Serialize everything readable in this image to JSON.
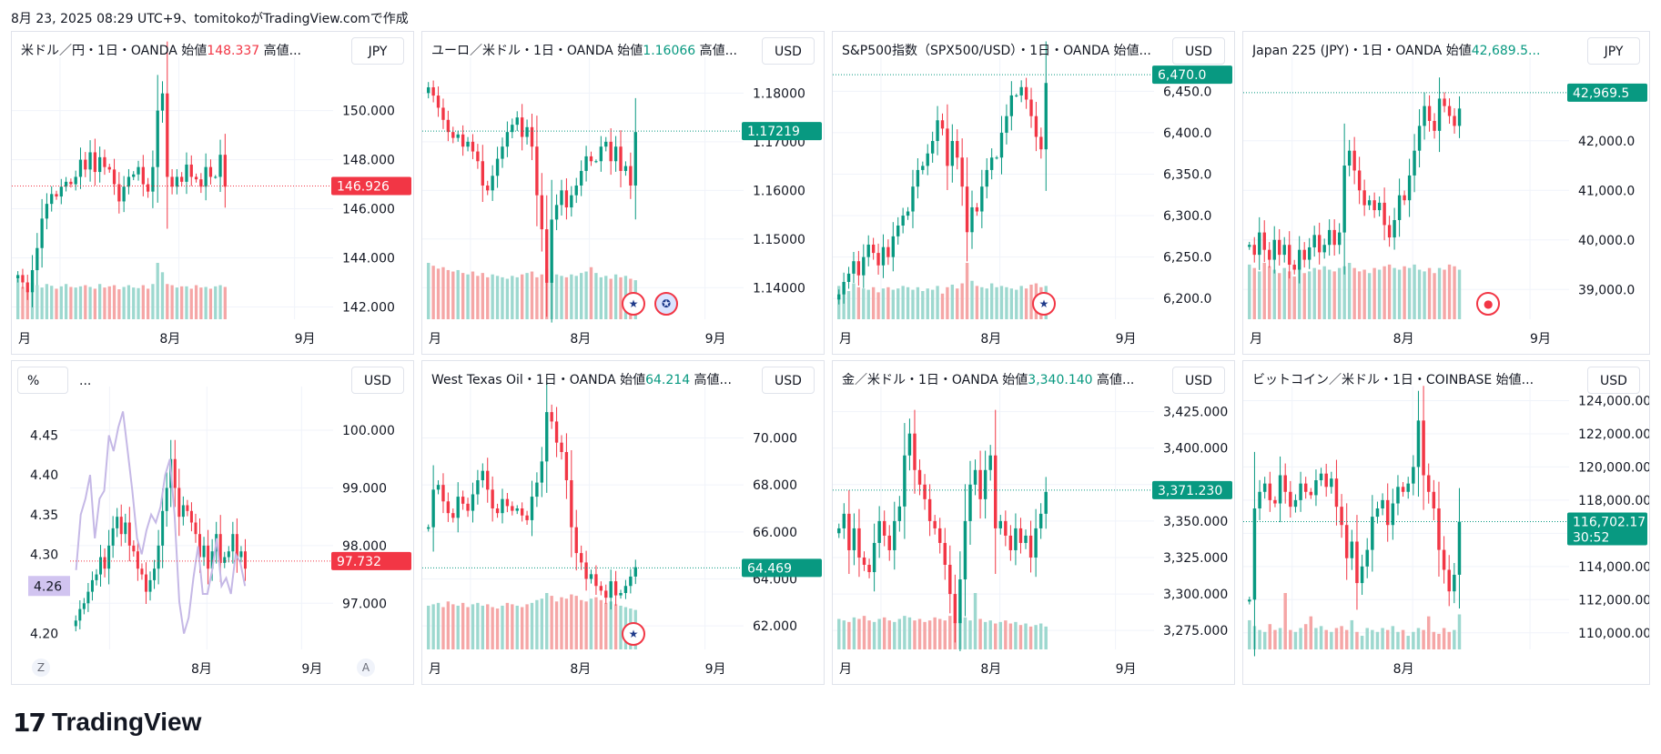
{
  "header": "8月 23, 2025 08:29 UTC+9、tomitokoがTradingView.comで作成",
  "footer": {
    "logo_mark": "17",
    "logo_text": "TradingView"
  },
  "colors": {
    "up": "#089981",
    "down": "#f23645",
    "up_vol": "#9dd8cf",
    "down_vol": "#f5a6a6",
    "grid": "#f0f3fa"
  },
  "chart_data": [
    {
      "type": "candlestick",
      "title_prefix": "米ドル／円・1日・OANDA  始値",
      "title_value": "148.337",
      "title_suffix": "  高値...",
      "value_color": "down",
      "currency": "JPY",
      "ylim": [
        141.5,
        151.8
      ],
      "y_ticks": [
        150.0,
        148.0,
        146.0,
        144.0,
        142.0
      ],
      "y_tick_labels": [
        "150.000",
        "148.000",
        "146.000",
        "144.000",
        "142.000"
      ],
      "last_price": 146.926,
      "last_label": "146.926",
      "last_color": "down",
      "time_labels": [
        "月",
        "8月",
        "9月"
      ],
      "closes": [
        143.3,
        143.0,
        142.6,
        143.5,
        144.4,
        145.6,
        146.2,
        146.6,
        146.5,
        146.9,
        147.1,
        147.0,
        147.3,
        148.0,
        147.6,
        148.3,
        147.5,
        148.1,
        147.7,
        147.6,
        147.0,
        146.3,
        146.9,
        147.3,
        147.4,
        147.7,
        147.0,
        146.7,
        147.7,
        150.0,
        150.7,
        147.3,
        146.9,
        147.3,
        147.1,
        147.8,
        147.3,
        147.2,
        146.9,
        147.7,
        147.3,
        147.3,
        148.2,
        146.9
      ],
      "volumes": [
        68,
        55,
        50,
        62,
        58,
        54,
        60,
        57,
        52,
        56,
        60,
        55,
        54,
        56,
        58,
        55,
        52,
        60,
        54,
        56,
        58,
        51,
        55,
        58,
        54,
        53,
        58,
        52,
        60,
        96,
        80,
        60,
        58,
        54,
        56,
        56,
        52,
        58,
        54,
        55,
        52,
        56,
        58,
        55
      ],
      "x_start": 0,
      "x_span": 60
    },
    {
      "type": "candlestick",
      "title_prefix": "ユーロ／米ドル・1日・OANDA  始値",
      "title_value": "1.16066",
      "title_suffix": "  高値...",
      "value_color": "up",
      "currency": "USD",
      "ylim": [
        1.1335,
        1.1855
      ],
      "y_ticks": [
        1.18,
        1.17,
        1.16,
        1.15,
        1.14
      ],
      "y_tick_labels": [
        "1.18000",
        "1.17000",
        "1.16000",
        "1.15000",
        "1.14000"
      ],
      "last_price": 1.17219,
      "last_label": "1.17219",
      "last_color": "up",
      "time_labels": [
        "月",
        "8月",
        "9月"
      ],
      "closes": [
        1.1812,
        1.1795,
        1.177,
        1.1745,
        1.172,
        1.1708,
        1.1715,
        1.169,
        1.17,
        1.168,
        1.166,
        1.161,
        1.16,
        1.163,
        1.1665,
        1.169,
        1.172,
        1.1735,
        1.175,
        1.171,
        1.173,
        1.169,
        1.159,
        1.152,
        1.141,
        1.154,
        1.157,
        1.16,
        1.1565,
        1.159,
        1.161,
        1.164,
        1.167,
        1.166,
        1.166,
        1.169,
        1.17,
        1.166,
        1.169,
        1.164,
        1.165,
        1.161,
        1.172
      ],
      "volumes": [
        78,
        74,
        70,
        72,
        68,
        66,
        68,
        64,
        62,
        66,
        60,
        64,
        58,
        62,
        60,
        58,
        56,
        60,
        58,
        62,
        64,
        66,
        58,
        62,
        70,
        66,
        62,
        60,
        58,
        62,
        60,
        64,
        66,
        72,
        64,
        58,
        60,
        56,
        62,
        58,
        60,
        56,
        54
      ],
      "flags": [
        "US",
        "EU"
      ],
      "x_start": 0,
      "x_span": 60
    },
    {
      "type": "candlestick",
      "title_prefix": "S&P500指数（SPX500/USD）・1日・OANDA  始値...",
      "title_value": "",
      "title_suffix": "",
      "value_color": "up",
      "currency": "USD",
      "ylim": [
        6175,
        6480
      ],
      "y_ticks": [
        6450,
        6400,
        6350,
        6300,
        6250,
        6200
      ],
      "y_tick_labels": [
        "6,450.0",
        "6,400.0",
        "6,350.0",
        "6,300.0",
        "6,250.0",
        "6,200.0"
      ],
      "last_price": 6470.0,
      "last_label": "6,470.0",
      "last_color": "up",
      "time_labels": [
        "月",
        "8月",
        "9月"
      ],
      "closes": [
        6205,
        6220,
        6230,
        6245,
        6228,
        6250,
        6265,
        6255,
        6240,
        6262,
        6250,
        6275,
        6288,
        6300,
        6305,
        6335,
        6355,
        6360,
        6375,
        6390,
        6415,
        6405,
        6360,
        6390,
        6370,
        6335,
        6280,
        6310,
        6305,
        6335,
        6355,
        6370,
        6370,
        6400,
        6420,
        6445,
        6445,
        6455,
        6440,
        6420,
        6395,
        6380,
        6460
      ],
      "volumes": [
        52,
        48,
        44,
        56,
        50,
        48,
        46,
        50,
        42,
        48,
        50,
        46,
        48,
        52,
        50,
        46,
        50,
        44,
        48,
        46,
        52,
        40,
        50,
        54,
        48,
        56,
        88,
        60,
        52,
        50,
        48,
        56,
        50,
        52,
        50,
        48,
        46,
        52,
        48,
        54,
        56,
        50,
        52
      ],
      "flags": [
        "US"
      ],
      "x_start": 0,
      "x_span": 60
    },
    {
      "type": "candlestick",
      "title_prefix": "Japan 225 (JPY)・1日・OANDA  始値",
      "title_value": "42,689.5...",
      "title_suffix": "",
      "value_color": "up",
      "currency": "JPY",
      "ylim": [
        38400,
        43500
      ],
      "y_ticks": [
        42000,
        41000,
        40000,
        39000
      ],
      "y_tick_labels": [
        "42,000.0",
        "41,000.0",
        "40,000.0",
        "39,000.0"
      ],
      "last_price": 42969.5,
      "last_label": "42,969.5",
      "last_color": "up",
      "time_labels": [
        "月",
        "8月",
        "9月"
      ],
      "closes": [
        39900,
        39700,
        40150,
        39800,
        39600,
        40000,
        39700,
        39900,
        39500,
        39400,
        39800,
        39600,
        39850,
        40100,
        39750,
        39900,
        40200,
        39900,
        40150,
        41500,
        41800,
        41400,
        41000,
        40700,
        40800,
        40600,
        40750,
        40300,
        40050,
        40400,
        40900,
        40800,
        41300,
        41800,
        42300,
        42700,
        42400,
        42200,
        42850,
        42700,
        42500,
        42300,
        42650
      ],
      "volumes": [
        64,
        60,
        56,
        66,
        62,
        58,
        54,
        60,
        56,
        50,
        58,
        54,
        56,
        60,
        58,
        62,
        58,
        56,
        60,
        62,
        66,
        60,
        56,
        58,
        54,
        60,
        58,
        62,
        64,
        60,
        58,
        62,
        60,
        64,
        58,
        56,
        60,
        54,
        60,
        58,
        64,
        62,
        58
      ],
      "flags": [
        "rec"
      ],
      "x_start": 0,
      "x_span": 60
    },
    {
      "type": "candlestick",
      "title_prefix": "",
      "title_value": "",
      "title_suffix": "",
      "value_color": "down",
      "currency": "USD",
      "left_axis": {
        "unit": "%",
        "ticks": [
          4.45,
          4.4,
          4.35,
          4.3,
          4.2
        ],
        "tick_labels": [
          "4.45",
          "4.40",
          "4.35",
          "4.30",
          "4.20"
        ],
        "ylim": [
          4.18,
          4.5
        ],
        "last_label": "4.26",
        "last_value": 4.26
      },
      "ylim": [
        96.2,
        100.6
      ],
      "y_ticks": [
        100.0,
        99.0,
        98.0,
        97.0
      ],
      "y_tick_labels": [
        "100.000",
        "99.000",
        "98.000",
        "97.000"
      ],
      "last_price": 97.732,
      "last_label": "97.732",
      "last_color": "down",
      "time_labels": [
        "8月",
        "9月"
      ],
      "closes": [
        96.7,
        96.9,
        97.0,
        97.2,
        97.4,
        97.5,
        97.8,
        97.6,
        98.0,
        98.3,
        98.5,
        98.2,
        98.4,
        98.0,
        97.9,
        97.6,
        97.5,
        97.2,
        97.4,
        97.6,
        98.0,
        98.6,
        99.0,
        99.5,
        99.0,
        98.5,
        98.7,
        98.6,
        98.4,
        98.2,
        97.8,
        98.0,
        97.6,
        97.9,
        98.2,
        97.7,
        97.8,
        97.9,
        98.2,
        97.8,
        97.9,
        97.6
      ],
      "yield_line": [
        4.28,
        4.35,
        4.37,
        4.4,
        4.32,
        4.37,
        4.38,
        4.45,
        4.43,
        4.46,
        4.48,
        4.43,
        4.38,
        4.32,
        4.3,
        4.33,
        4.35,
        4.34,
        4.36,
        4.4,
        4.42,
        4.35,
        4.24,
        4.2,
        4.22,
        4.27,
        4.31,
        4.25,
        4.25,
        4.28,
        4.32,
        4.26,
        4.27,
        4.25,
        4.3,
        4.29,
        4.26
      ],
      "x_start": 0,
      "x_span": 60
    },
    {
      "type": "candlestick",
      "title_prefix": "West Texas Oil・1日・OANDA  始値",
      "title_value": "64.214",
      "title_suffix": "  高値...",
      "value_color": "up",
      "currency": "USD",
      "ylim": [
        61.0,
        71.8
      ],
      "y_ticks": [
        70,
        68,
        66,
        64,
        62
      ],
      "y_tick_labels": [
        "70.000",
        "68.000",
        "66.000",
        "64.000",
        "62.000"
      ],
      "last_price": 64.469,
      "last_label": "64.469",
      "last_color": "up",
      "time_labels": [
        "月",
        "8月",
        "9月"
      ],
      "closes": [
        66.2,
        67.8,
        68.0,
        67.3,
        66.8,
        66.6,
        67.5,
        67.2,
        66.9,
        67.6,
        68.2,
        68.6,
        67.8,
        67.0,
        66.8,
        67.4,
        67.1,
        66.9,
        67.0,
        66.7,
        66.5,
        67.5,
        68.1,
        69.0,
        71.1,
        70.7,
        69.8,
        69.4,
        68.2,
        66.2,
        65.1,
        64.7,
        64.0,
        64.2,
        63.7,
        63.5,
        63.2,
        63.9,
        63.3,
        63.4,
        63.7,
        64.1,
        64.5
      ],
      "volumes": [
        62,
        64,
        66,
        60,
        68,
        64,
        62,
        66,
        60,
        64,
        66,
        62,
        64,
        60,
        58,
        62,
        66,
        64,
        62,
        60,
        64,
        66,
        70,
        72,
        80,
        76,
        68,
        74,
        72,
        78,
        76,
        70,
        68,
        72,
        74,
        70,
        66,
        68,
        64,
        62,
        60,
        58,
        56
      ],
      "flags": [
        "US"
      ],
      "x_start": 0,
      "x_span": 60
    },
    {
      "type": "candlestick",
      "title_prefix": "金／米ドル・1日・OANDA  始値",
      "title_value": "3,340.140",
      "title_suffix": "  高値...",
      "value_color": "up",
      "currency": "USD",
      "ylim": [
        3262,
        3436
      ],
      "y_ticks": [
        3425,
        3400,
        3375,
        3350,
        3325,
        3300,
        3275
      ],
      "y_tick_labels": [
        "3,425.000",
        "3,400.000",
        "",
        "3,350.000",
        "3,325.000",
        "3,300.000",
        "3,275.000"
      ],
      "last_price": 3371.23,
      "last_label": "3,371.230",
      "last_color": "up",
      "time_labels": [
        "月",
        "8月",
        "9月"
      ],
      "closes": [
        3345,
        3355,
        3330,
        3345,
        3325,
        3320,
        3315,
        3335,
        3350,
        3340,
        3330,
        3350,
        3360,
        3395,
        3410,
        3385,
        3375,
        3365,
        3350,
        3345,
        3335,
        3320,
        3300,
        3280,
        3310,
        3350,
        3375,
        3385,
        3365,
        3385,
        3395,
        3345,
        3350,
        3340,
        3330,
        3345,
        3335,
        3340,
        3325,
        3345,
        3355,
        3370
      ],
      "volumes": [
        40,
        38,
        36,
        42,
        40,
        44,
        38,
        36,
        40,
        42,
        38,
        36,
        40,
        44,
        42,
        38,
        40,
        36,
        38,
        42,
        40,
        38,
        44,
        36,
        40,
        42,
        38,
        74,
        40,
        36,
        38,
        34,
        36,
        38,
        34,
        36,
        32,
        34,
        30,
        32,
        34,
        30
      ],
      "x_start": 0,
      "x_span": 60
    },
    {
      "type": "candlestick",
      "title_prefix": "ビットコイン／米ドル・1日・COINBASE  始値...",
      "title_value": "",
      "title_suffix": "",
      "value_color": "up",
      "currency": "USD",
      "ylim": [
        109000,
        124300
      ],
      "y_ticks": [
        124000,
        122000,
        120000,
        118000,
        116000,
        114000,
        112000,
        110000
      ],
      "y_tick_labels": [
        "124,000.00",
        "122,000.00",
        "120,000.00",
        "118,000.00",
        "",
        "114,000.00",
        "112,000.00",
        "110,000.00"
      ],
      "last_price": 116702.17,
      "last_label": "116,702.17",
      "last_sub": "30:52",
      "last_color": "up",
      "time_labels": [
        "8月"
      ],
      "closes": [
        112000,
        117500,
        118500,
        119000,
        118000,
        117800,
        119500,
        118500,
        117600,
        118000,
        119000,
        118500,
        118300,
        119200,
        119600,
        118800,
        119300,
        117600,
        116500,
        114500,
        115500,
        113000,
        114000,
        115000,
        117000,
        117500,
        118000,
        116500,
        117800,
        118800,
        118500,
        119000,
        120000,
        122800,
        119500,
        118500,
        117500,
        115000,
        113800,
        112500,
        113500,
        116700
      ],
      "volumes": [
        30,
        24,
        20,
        18,
        26,
        20,
        22,
        58,
        20,
        18,
        22,
        26,
        34,
        22,
        24,
        20,
        18,
        22,
        24,
        20,
        30,
        18,
        14,
        22,
        20,
        18,
        22,
        20,
        24,
        18,
        20,
        14,
        18,
        22,
        20,
        34,
        18,
        16,
        22,
        18,
        20,
        36
      ],
      "x_start": 0,
      "x_span": 60
    }
  ]
}
